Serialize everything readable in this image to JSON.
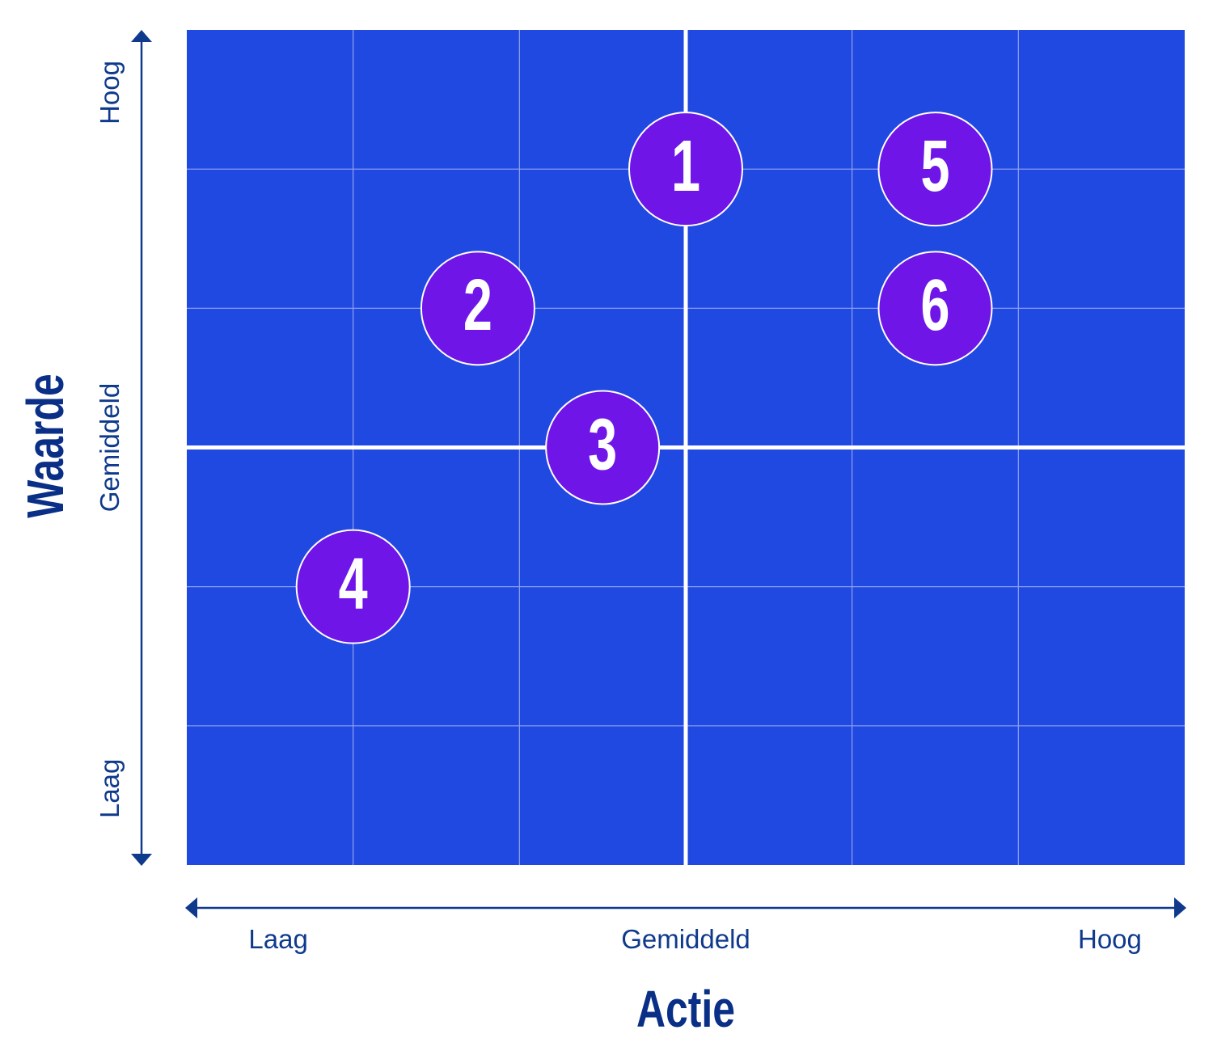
{
  "chart_data": {
    "type": "scatter",
    "title": "",
    "xlabel": "Actie",
    "ylabel": "Waarde",
    "xlim": [
      0,
      6
    ],
    "ylim": [
      0,
      6
    ],
    "x_ticks": [
      {
        "label": "Laag",
        "value": 0.55
      },
      {
        "label": "Gemiddeld",
        "value": 3.0
      },
      {
        "label": "Hoog",
        "value": 5.55
      }
    ],
    "y_ticks": [
      {
        "label": "Laag",
        "value": 0.55
      },
      {
        "label": "Gemiddeld",
        "value": 3.0
      },
      {
        "label": "Hoog",
        "value": 5.55
      }
    ],
    "grid": true,
    "grid_divisions": {
      "x": 6,
      "y": 6
    },
    "quadrant_divider": {
      "x": 3,
      "y": 3
    },
    "points": [
      {
        "label": "1",
        "x": 3.0,
        "y": 5.0
      },
      {
        "label": "2",
        "x": 1.75,
        "y": 4.0
      },
      {
        "label": "3",
        "x": 2.5,
        "y": 3.0
      },
      {
        "label": "4",
        "x": 1.0,
        "y": 2.0
      },
      {
        "label": "5",
        "x": 4.5,
        "y": 5.0
      },
      {
        "label": "6",
        "x": 4.5,
        "y": 4.0
      }
    ],
    "colors": {
      "plot_background": "#2049e1",
      "grid_line": "#8fa3f0",
      "divider": "#ffffff",
      "marker_fill": "#6f15e8",
      "marker_stroke": "#ffffff",
      "marker_text": "#ffffff",
      "axis": "#0f3a8c",
      "axis_title": "#0a2f86"
    }
  }
}
